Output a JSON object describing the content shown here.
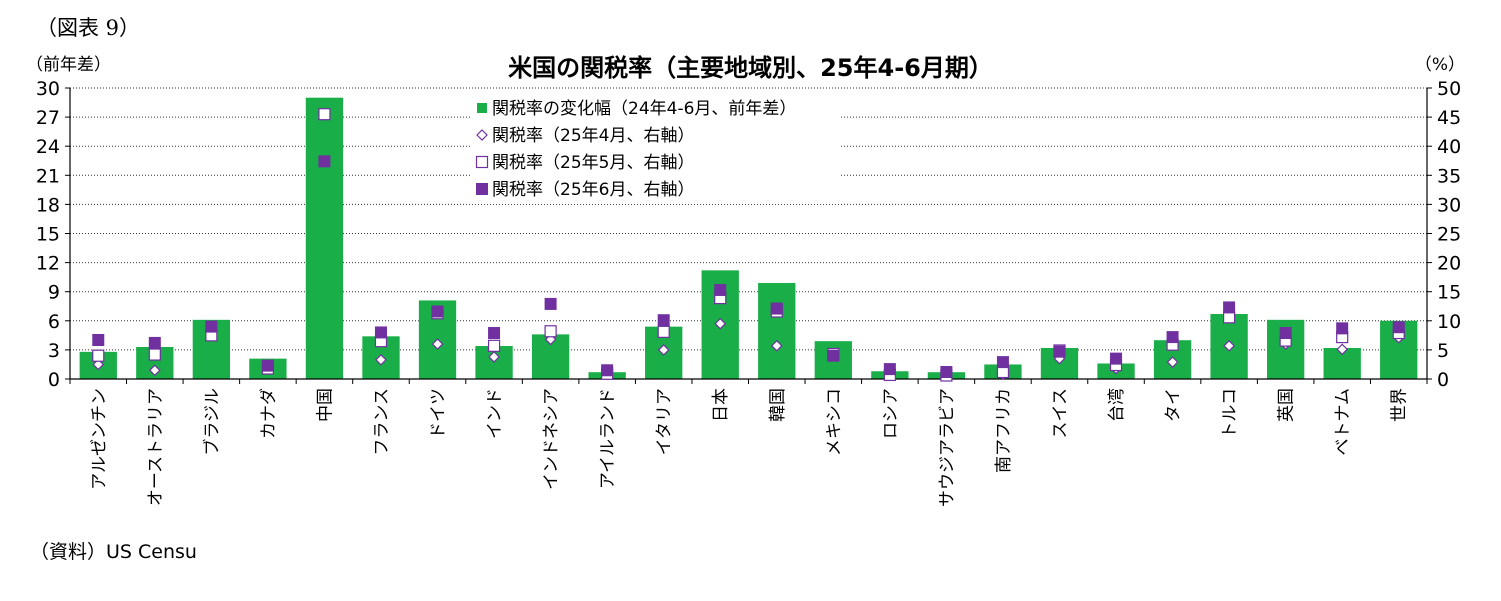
{
  "figure_label": "（図表 9）",
  "source": "（資料）US  Censu",
  "chart_data": {
    "type": "bar",
    "title": "米国の関税率（主要地域別、25年4-6月期）",
    "ylabel_left": "（前年差）",
    "ylabel_right": "（%）",
    "ylim_left": [
      0,
      30
    ],
    "yticks_left": [
      0,
      3,
      6,
      9,
      12,
      15,
      18,
      21,
      24,
      27,
      30
    ],
    "ylim_right": [
      0,
      50
    ],
    "yticks_right": [
      0,
      5,
      10,
      15,
      20,
      25,
      30,
      35,
      40,
      45,
      50
    ],
    "grid": true,
    "legend_position": "top-center",
    "categories": [
      "アルゼンチン",
      "オーストラリア",
      "ブラジル",
      "カナダ",
      "中国",
      "フランス",
      "ドイツ",
      "インド",
      "インドネシア",
      "アイルランド",
      "イタリア",
      "日本",
      "韓国",
      "メキシコ",
      "ロシア",
      "サウジアラビア",
      "南アフリカ",
      "スイス",
      "台湾",
      "タイ",
      "トルコ",
      "英国",
      "ベトナム",
      "世界"
    ],
    "series": [
      {
        "name": "関税率の変化幅（24年4-6月、前年差）",
        "axis": "left",
        "marker": "bar",
        "color": "#1aae48",
        "values": [
          2.8,
          3.3,
          6.1,
          2.1,
          29.0,
          4.4,
          8.1,
          3.4,
          4.6,
          0.7,
          5.4,
          11.2,
          9.9,
          3.9,
          0.8,
          0.7,
          1.5,
          3.2,
          1.6,
          4.0,
          6.7,
          6.1,
          3.2,
          6.0
        ]
      },
      {
        "name": "関税率（25年4月、右軸）",
        "axis": "right",
        "marker": "diamond",
        "color": "#7030a0",
        "values": [
          2.5,
          1.5,
          8.0,
          1.7,
          null,
          3.3,
          6.0,
          3.8,
          6.8,
          0.8,
          5.0,
          9.5,
          5.7,
          4.0,
          0.8,
          0.6,
          0.8,
          3.5,
          1.8,
          2.9,
          5.7,
          6.0,
          5.1,
          7.1
        ]
      },
      {
        "name": "関税率（25年5月、右軸）",
        "axis": "right",
        "marker": "square-open",
        "color": "#7030a0",
        "values": [
          4.0,
          4.2,
          7.5,
          1.8,
          45.5,
          6.5,
          11.3,
          5.7,
          8.2,
          0.9,
          8.1,
          13.9,
          11.6,
          4.3,
          0.7,
          0.6,
          1.2,
          4.9,
          2.4,
          5.9,
          10.6,
          6.6,
          7.2,
          7.9
        ]
      },
      {
        "name": "関税率（25年6月、右軸）",
        "axis": "right",
        "marker": "square-filled",
        "color": "#7030a0",
        "values": [
          6.7,
          6.2,
          9.0,
          2.3,
          37.4,
          8.0,
          11.6,
          7.9,
          12.9,
          1.5,
          10.1,
          15.3,
          12.1,
          4.0,
          1.7,
          1.2,
          2.9,
          4.7,
          3.5,
          7.2,
          12.3,
          7.9,
          8.7,
          8.9
        ]
      }
    ]
  }
}
